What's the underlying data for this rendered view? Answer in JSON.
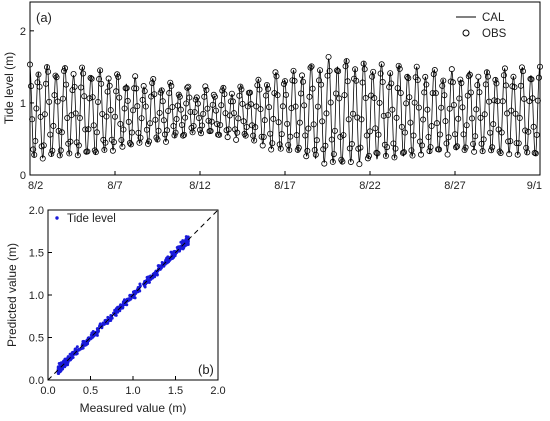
{
  "chart_data": [
    {
      "type": "line",
      "panel_label": "(a)",
      "xlabel": "",
      "ylabel": "Tide level (m)",
      "x_ticks": [
        "8/2",
        "8/7",
        "8/12",
        "8/17",
        "8/22",
        "8/27",
        "9/1"
      ],
      "x_range_days": [
        "8/2",
        "9/1"
      ],
      "ylim": [
        0,
        2.4
      ],
      "y_ticks": [
        0,
        1,
        2
      ],
      "grid": false,
      "legend_position": "top-right",
      "series": [
        {
          "name": "CAL",
          "style": "line",
          "color": "#000000",
          "model": "semidiurnal tide, period 0.5175 d, mean 0.86 m",
          "amplitude_by_date": [
            {
              "date": "8/2",
              "amp": 0.62
            },
            {
              "date": "8/5",
              "amp": 0.58
            },
            {
              "date": "8/9",
              "amp": 0.42
            },
            {
              "date": "8/12",
              "amp": 0.28
            },
            {
              "date": "8/14",
              "amp": 0.32
            },
            {
              "date": "8/17",
              "amp": 0.52
            },
            {
              "date": "8/20",
              "amp": 0.7
            },
            {
              "date": "8/23",
              "amp": 0.62
            },
            {
              "date": "8/27",
              "amp": 0.52
            },
            {
              "date": "9/1",
              "amp": 0.58
            }
          ]
        },
        {
          "name": "OBS",
          "style": "open-circle",
          "color": "#000000",
          "sampling": "every 1.5 h"
        }
      ]
    },
    {
      "type": "scatter",
      "panel_label": "(b)",
      "xlabel": "Measured value (m)",
      "ylabel": "Predicted value (m)",
      "xlim": [
        0,
        2.0
      ],
      "ylim": [
        0,
        2.0
      ],
      "ticks": [
        "0.0",
        "0.5",
        "1.0",
        "1.5",
        "2.0"
      ],
      "grid": false,
      "legend_position": "top-left",
      "series": [
        {
          "name": "Tide level",
          "style": "filled-dot",
          "color": "#1a1adb",
          "x_range": [
            0.12,
            1.65
          ],
          "spread": "±0.08 m around 1:1"
        }
      ],
      "reference_line": {
        "style": "dashed",
        "color": "#000000",
        "from": [
          0,
          0
        ],
        "to": [
          2.0,
          2.0
        ]
      }
    }
  ]
}
